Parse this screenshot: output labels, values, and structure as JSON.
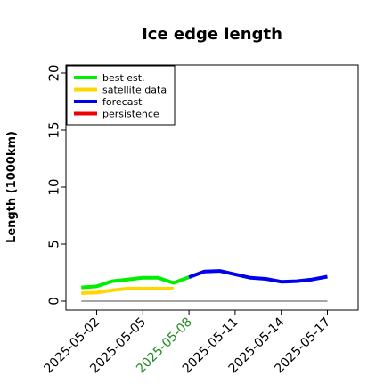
{
  "chart_data": {
    "type": "line",
    "title": "Ice edge length",
    "xlabel": "",
    "ylabel": "Length (1000km)",
    "ylim": [
      0,
      20
    ],
    "yticks": [
      "0",
      "5",
      "10",
      "15",
      "20"
    ],
    "xlim": [
      "2025-04-30",
      "2025-05-19"
    ],
    "xticks": [
      "2025-05-02",
      "2025-05-05",
      "2025-05-08",
      "2025-05-11",
      "2025-05-14",
      "2025-05-17"
    ],
    "highlight_tick": "2025-05-08",
    "highlight_color": "#228B22",
    "grid": false,
    "legend_position": "top-left",
    "series": [
      {
        "name": "best est.",
        "color": "#00ee00",
        "x": [
          "2025-05-01",
          "2025-05-02",
          "2025-05-03",
          "2025-05-04",
          "2025-05-05",
          "2025-05-06",
          "2025-05-07",
          "2025-05-08"
        ],
        "y": [
          1.2,
          1.3,
          1.75,
          1.9,
          2.05,
          2.05,
          1.6,
          2.1
        ]
      },
      {
        "name": "satellite data",
        "color": "#ffd700",
        "x": [
          "2025-05-01",
          "2025-05-02",
          "2025-05-03",
          "2025-05-04",
          "2025-05-05",
          "2025-05-06",
          "2025-05-07"
        ],
        "y": [
          0.7,
          0.75,
          0.95,
          1.1,
          1.1,
          1.1,
          1.1
        ]
      },
      {
        "name": "forecast",
        "color": "#0000ee",
        "x": [
          "2025-05-08",
          "2025-05-09",
          "2025-05-10",
          "2025-05-11",
          "2025-05-12",
          "2025-05-13",
          "2025-05-14",
          "2025-05-15",
          "2025-05-16",
          "2025-05-17"
        ],
        "y": [
          2.1,
          2.6,
          2.65,
          2.35,
          2.05,
          1.95,
          1.7,
          1.75,
          1.9,
          2.15
        ]
      },
      {
        "name": "persistence",
        "color": "#ee0000",
        "x": [],
        "y": []
      }
    ],
    "baseline": {
      "color": "#888888",
      "x": [
        "2025-05-01",
        "2025-05-17"
      ],
      "y": [
        0,
        0
      ]
    }
  }
}
